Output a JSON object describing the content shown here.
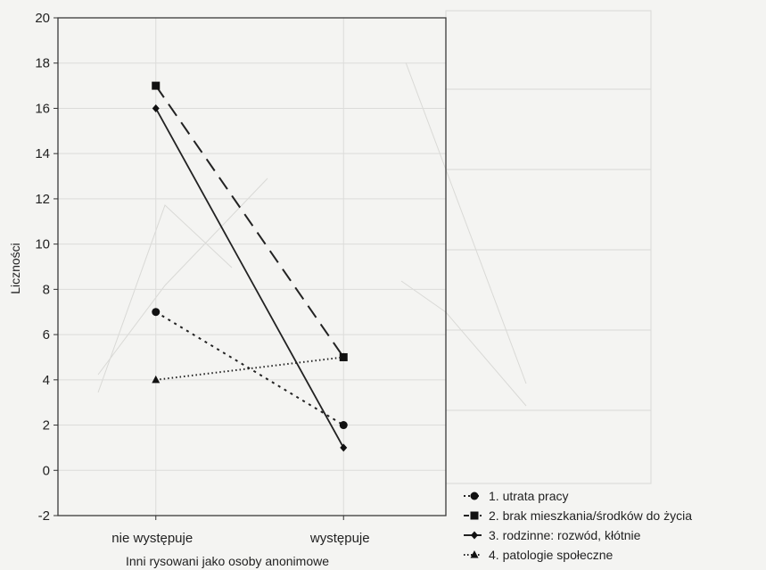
{
  "chart_data": {
    "type": "line",
    "categories": [
      "nie występuje",
      "występuje"
    ],
    "xlabel": "Inni rysowani jako osoby anonimowe",
    "ylabel": "Liczności",
    "ylim": [
      -2,
      20
    ],
    "yticks": [
      -2,
      0,
      2,
      4,
      6,
      8,
      10,
      12,
      14,
      16,
      18,
      20
    ],
    "grid": true,
    "legend_position": "bottom-right",
    "series": [
      {
        "name": "1.  utrata pracy",
        "values": [
          7,
          2
        ],
        "marker": "circle",
        "dash": "dotted"
      },
      {
        "name": "2. brak mieszkania/środków do życia",
        "values": [
          17,
          5
        ],
        "marker": "square",
        "dash": "dashed"
      },
      {
        "name": "3. rodzinne: rozwód, kłótnie",
        "values": [
          16,
          1
        ],
        "marker": "diamond",
        "dash": "solid"
      },
      {
        "name": "4. patologie społeczne",
        "values": [
          4,
          5
        ],
        "marker": "triangle",
        "dash": "fine-dotted"
      }
    ]
  }
}
